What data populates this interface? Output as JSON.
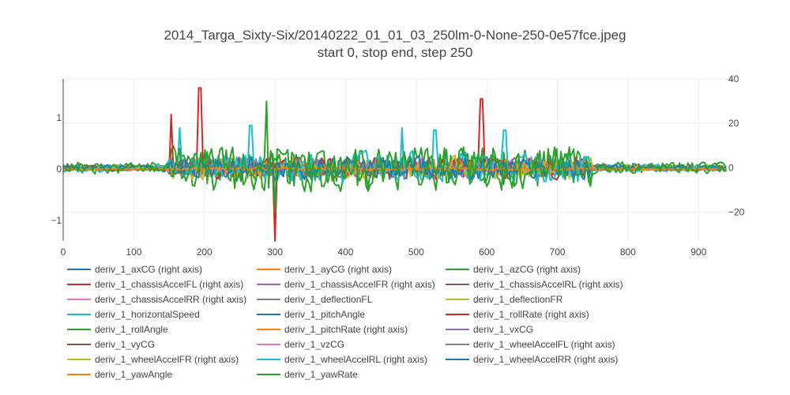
{
  "chart_data": {
    "type": "line",
    "title": "2014_Targa_Sixty-Six/20140222_01_01_03_250lm-0-None-250-0e57fce.jpeg",
    "subtitle": "start 0, stop end, step 250",
    "x_range": [
      0,
      940
    ],
    "x_ticks": [
      0,
      100,
      200,
      300,
      400,
      500,
      600,
      700,
      800,
      900
    ],
    "y_left_range": [
      -1.4,
      1.75
    ],
    "y_left_ticks": [
      -1,
      0,
      1
    ],
    "y_left_tick_labels": [
      "−1",
      "0",
      "1"
    ],
    "y_right_range": [
      -33,
      40
    ],
    "y_right_ticks": [
      -20,
      0,
      20,
      40
    ],
    "y_right_tick_labels": [
      "−20",
      "0",
      "20",
      "40"
    ],
    "grid": true,
    "legend_position": "bottom",
    "active_window": [
      150,
      750
    ],
    "series": [
      {
        "name": "deriv_1_axCG (right axis)",
        "color": "#1f77b4",
        "axis": "right",
        "amp": 3,
        "seed": 1
      },
      {
        "name": "deriv_1_ayCG (right axis)",
        "color": "#ff7f0e",
        "axis": "right",
        "amp": 2,
        "seed": 2
      },
      {
        "name": "deriv_1_azCG (right axis)",
        "color": "#2ca02c",
        "axis": "right",
        "amp": 12,
        "seed": 3
      },
      {
        "name": "deriv_1_chassisAccelFL (right axis)",
        "color": "#d62728",
        "axis": "right",
        "amp": 6,
        "seed": 4,
        "spikes": [
          [
            153,
            24
          ],
          [
            193,
            36
          ],
          [
            300,
            -33
          ],
          [
            593,
            31
          ]
        ]
      },
      {
        "name": "deriv_1_chassisAccelFR (right axis)",
        "color": "#9467bd",
        "axis": "right",
        "amp": 5,
        "seed": 5
      },
      {
        "name": "deriv_1_chassisAccelRL (right axis)",
        "color": "#8c564b",
        "axis": "right",
        "amp": 4,
        "seed": 6
      },
      {
        "name": "deriv_1_chassisAccelRR (right axis)",
        "color": "#e377c2",
        "axis": "right",
        "amp": 4,
        "seed": 7
      },
      {
        "name": "deriv_1_deflectionFL",
        "color": "#7f7f7f",
        "axis": "left",
        "amp": 0.12,
        "seed": 8
      },
      {
        "name": "deriv_1_deflectionFR",
        "color": "#bcbd22",
        "axis": "left",
        "amp": 0.12,
        "seed": 9
      },
      {
        "name": "deriv_1_horizontalSpeed",
        "color": "#17becf",
        "axis": "left",
        "amp": 0.15,
        "seed": 10
      },
      {
        "name": "deriv_1_pitchAngle",
        "color": "#1f77b4",
        "axis": "left",
        "amp": 0.08,
        "seed": 11
      },
      {
        "name": "deriv_1_rollRate (right axis)",
        "color": "#d62728",
        "axis": "right",
        "amp": 5,
        "seed": 12
      },
      {
        "name": "deriv_1_rollAngle",
        "color": "#2ca02c",
        "axis": "left",
        "amp": 0.1,
        "seed": 13
      },
      {
        "name": "deriv_1_pitchRate (right axis)",
        "color": "#ff7f0e",
        "axis": "right",
        "amp": 3,
        "seed": 14
      },
      {
        "name": "deriv_1_vxCG",
        "color": "#9467bd",
        "axis": "left",
        "amp": 0.08,
        "seed": 15
      },
      {
        "name": "deriv_1_vyCG",
        "color": "#8c564b",
        "axis": "left",
        "amp": 0.08,
        "seed": 16
      },
      {
        "name": "deriv_1_vzCG",
        "color": "#e377c2",
        "axis": "left",
        "amp": 0.08,
        "seed": 17
      },
      {
        "name": "deriv_1_wheelAccelFL (right axis)",
        "color": "#7f7f7f",
        "axis": "right",
        "amp": 5,
        "seed": 18
      },
      {
        "name": "deriv_1_wheelAccelFR (right axis)",
        "color": "#bcbd22",
        "axis": "right",
        "amp": 6,
        "seed": 19
      },
      {
        "name": "deriv_1_wheelAccelRL (right axis)",
        "color": "#17becf",
        "axis": "right",
        "amp": 8,
        "seed": 20,
        "spikes": [
          [
            165,
            18
          ],
          [
            265,
            19
          ],
          [
            480,
            18
          ],
          [
            527,
            17
          ],
          [
            625,
            17
          ]
        ]
      },
      {
        "name": "deriv_1_wheelAccelRR (right axis)",
        "color": "#1f77b4",
        "axis": "right",
        "amp": 6,
        "seed": 21
      },
      {
        "name": "deriv_1_yawAngle",
        "color": "#ff7f0e",
        "axis": "left",
        "amp": 0.03,
        "seed": 22
      },
      {
        "name": "deriv_1_yawRate",
        "color": "#2ca02c",
        "axis": "right",
        "amp": 11,
        "seed": 23,
        "spikes": [
          [
            288,
            30
          ],
          [
            300,
            -20
          ]
        ]
      }
    ]
  }
}
